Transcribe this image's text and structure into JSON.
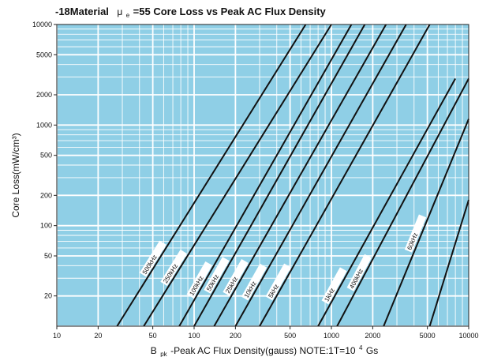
{
  "chart_data": {
    "type": "line",
    "title": "-18Material",
    "title_mu": "μ",
    "title_mu_sub": "e",
    "title_rest": "=55 Core Loss vs Peak AC Flux Density",
    "xlabel_prefix": "B",
    "xlabel_sub": "pk",
    "xlabel_rest": "-Peak AC Flux Density(gauss)  NOTE:1T=10",
    "xlabel_sup": "4",
    "xlabel_end": "Gs",
    "ylabel": "Core Loss(mW/cm³)",
    "x_scale": "log",
    "y_scale": "log",
    "xlim": [
      10,
      10000
    ],
    "ylim": [
      10,
      10000
    ],
    "grid": true,
    "plot_background": "#8fcfe6",
    "grid_color": "#ffffff",
    "line_color": "#111111",
    "x_tick_labels": [
      "10",
      "20",
      "50",
      "100",
      "200",
      "500",
      "1000",
      "2000",
      "5000",
      "10000"
    ],
    "x_ticks": [
      10,
      20,
      50,
      100,
      200,
      500,
      1000,
      2000,
      5000,
      10000
    ],
    "y_tick_labels": [
      "10000",
      "5000",
      "2000",
      "1000",
      "500",
      "200",
      "100",
      "50",
      "20"
    ],
    "y_ticks": [
      10000,
      5000,
      2000,
      1000,
      500,
      200,
      100,
      50,
      20
    ],
    "series": [
      {
        "name": "500kHz",
        "points": [
          [
            27.5,
            10
          ],
          [
            650,
            10000
          ]
        ],
        "label_x": 55,
        "label_y": 55
      },
      {
        "name": "250kHz",
        "points": [
          [
            43,
            10
          ],
          [
            1000,
            10000
          ]
        ],
        "label_x": 78,
        "label_y": 55
      },
      {
        "name": "100kHz",
        "points": [
          [
            78,
            10
          ],
          [
            1400,
            10000
          ]
        ],
        "label_x": 120,
        "label_y": 55
      },
      {
        "name": "50kHz",
        "points": [
          [
            100,
            10
          ],
          [
            1750,
            10000
          ]
        ],
        "label_x": 160,
        "label_y": 55
      },
      {
        "name": "25kHz",
        "points": [
          [
            140,
            10
          ],
          [
            2500,
            10000
          ]
        ],
        "label_x": 220,
        "label_y": 55
      },
      {
        "name": "10kHz",
        "points": [
          [
            200,
            10
          ],
          [
            3500,
            10000
          ]
        ],
        "label_x": 300,
        "label_y": 55
      },
      {
        "name": "5kHz",
        "points": [
          [
            300,
            10
          ],
          [
            5200,
            10000
          ]
        ],
        "label_x": 450,
        "label_y": 55
      },
      {
        "name": "1kHz",
        "points": [
          [
            800,
            10
          ],
          [
            8000,
            2900
          ]
        ],
        "label_x": 1150,
        "label_y": 55
      },
      {
        "name": "400kHz",
        "points": [
          [
            1100,
            10
          ],
          [
            10000,
            2900
          ]
        ],
        "label_x": 1750,
        "label_y": 55
      },
      {
        "name": "60kHz",
        "points": [
          [
            2400,
            10
          ],
          [
            10000,
            1150
          ]
        ],
        "label_x": 4500,
        "label_y": 55
      },
      {
        "name": "",
        "points": [
          [
            5200,
            10
          ],
          [
            10000,
            180
          ]
        ]
      }
    ]
  }
}
